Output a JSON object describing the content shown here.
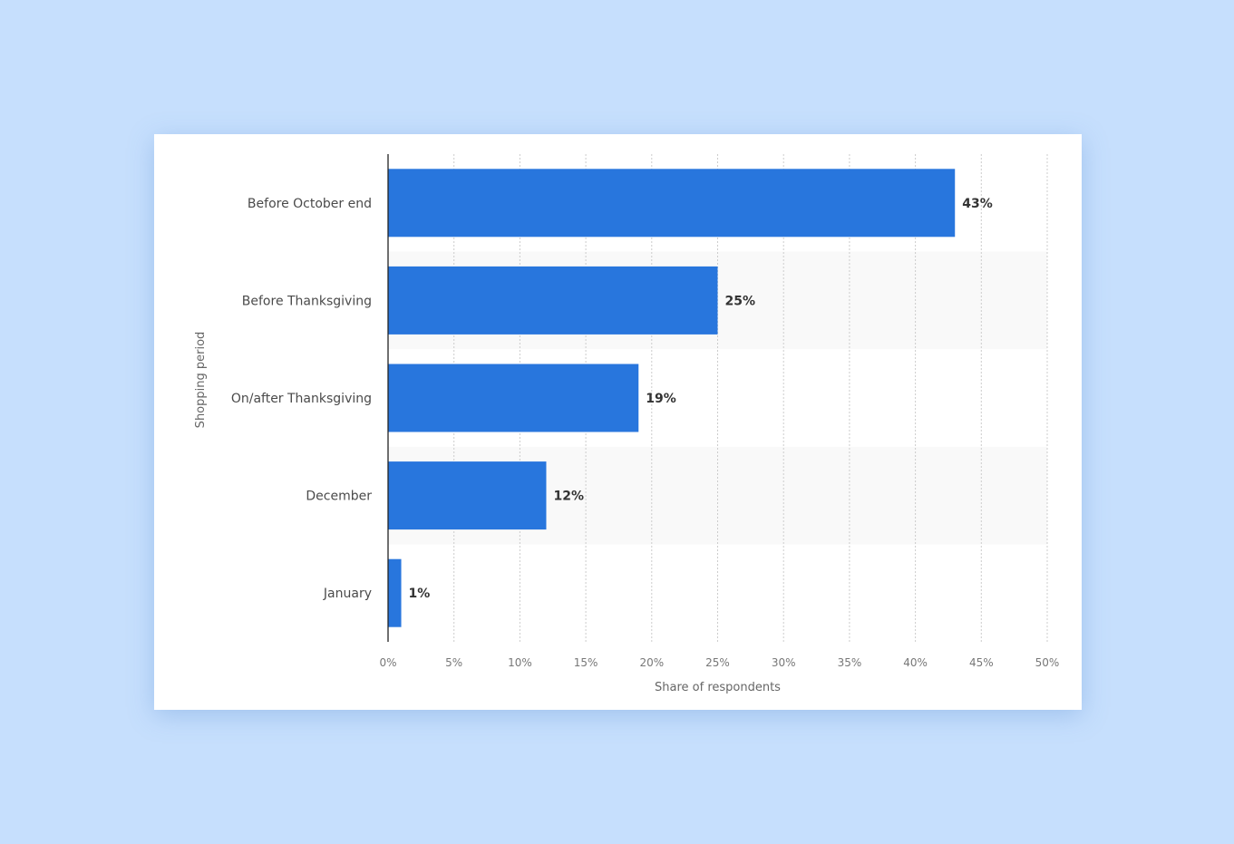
{
  "chart_data": {
    "type": "bar",
    "orientation": "horizontal",
    "categories": [
      "Before October end",
      "Before Thanksgiving",
      "On/after Thanksgiving",
      "December",
      "January"
    ],
    "values": [
      43,
      25,
      19,
      12,
      1
    ],
    "data_labels": [
      "43%",
      "25%",
      "19%",
      "12%",
      "1%"
    ],
    "xticks": [
      "0%",
      "5%",
      "10%",
      "15%",
      "20%",
      "25%",
      "30%",
      "35%",
      "40%",
      "45%",
      "50%"
    ],
    "xlabel": "Share of respondents",
    "ylabel": "Shopping period",
    "xlim": [
      0,
      50
    ],
    "grid": true,
    "legend": "none",
    "colors": {
      "bar": "#2876dd",
      "band": "#f9f9f9",
      "grid": "#cccccc",
      "axis": "#222222"
    }
  }
}
